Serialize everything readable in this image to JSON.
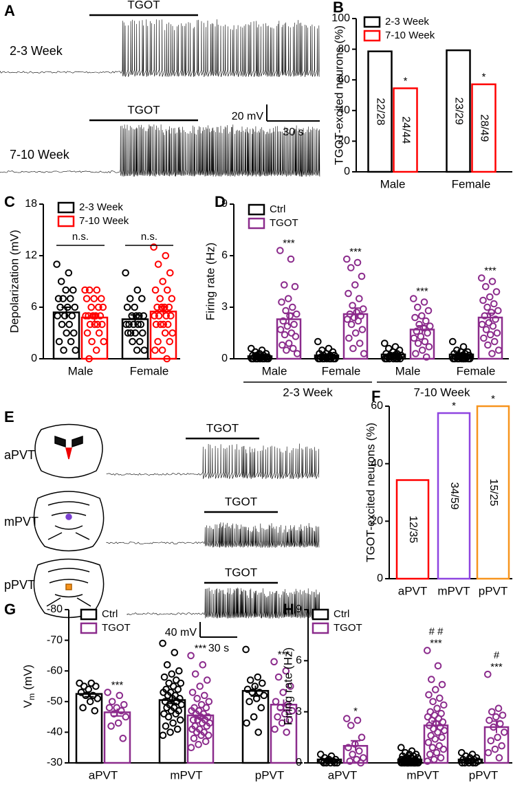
{
  "chart_data": [
    {
      "type": "trace",
      "panel_label": "A",
      "traces": [
        {
          "label": "2-3 Week",
          "stimulus": "TGOT"
        },
        {
          "label": "7-10 Week",
          "stimulus": "TGOT"
        }
      ],
      "scale_bar": {
        "y": "20 mV",
        "x": "30 s"
      }
    },
    {
      "type": "bar",
      "panel_label": "B",
      "ylabel": "TGOT-excited neurons (%)",
      "categories": [
        "Male",
        "Female"
      ],
      "ylim": [
        0,
        100
      ],
      "yticks": [
        0,
        20,
        40,
        60,
        80,
        100
      ],
      "legend": "top-left",
      "series": [
        {
          "name": "2-3 Week",
          "color": "#000000",
          "values": [
            78.6,
            79.3
          ],
          "value_labels": [
            "22/28",
            "23/29"
          ]
        },
        {
          "name": "7-10 Week",
          "color": "#ff0000",
          "values": [
            54.5,
            57.1
          ],
          "value_labels": [
            "24/44",
            "28/49"
          ],
          "annotations": [
            "*",
            "*"
          ]
        }
      ]
    },
    {
      "type": "bar",
      "panel_label": "C",
      "ylabel": "Depolarization (mV)",
      "categories": [
        "Male",
        "Female"
      ],
      "ylim": [
        0,
        18
      ],
      "yticks": [
        0,
        6,
        12,
        18
      ],
      "legend": "top-left",
      "category_annotations": [
        "n.s.",
        "n.s."
      ],
      "series": [
        {
          "name": "2-3 Week",
          "color": "#000000",
          "values": [
            5.4,
            4.6
          ],
          "errors": [
            0.6,
            0.5
          ],
          "points": [
            [
              11,
              10,
              9,
              8,
              8,
              7,
              7,
              7,
              6,
              6,
              6,
              5,
              5,
              5,
              4,
              4,
              3,
              3,
              2,
              2,
              1,
              1
            ],
            [
              10,
              8,
              7,
              7,
              6,
              6,
              5,
              5,
              5,
              5,
              4,
              4,
              4,
              4,
              4,
              3,
              3,
              3,
              3,
              2,
              2,
              1,
              1
            ]
          ]
        },
        {
          "name": "7-10 Week",
          "color": "#ff0000",
          "values": [
            4.8,
            5.5
          ],
          "errors": [
            0.4,
            0.6
          ],
          "points": [
            [
              8,
              8,
              8,
              7,
              7,
              7,
              6,
              6,
              6,
              5,
              5,
              5,
              5,
              5,
              4,
              4,
              4,
              4,
              3,
              3,
              2,
              2,
              1,
              0
            ],
            [
              13,
              12,
              11,
              10,
              9,
              8,
              8,
              7,
              7,
              6,
              6,
              6,
              6,
              5,
              5,
              5,
              5,
              4,
              4,
              4,
              4,
              3,
              3,
              2,
              2,
              1,
              1,
              0
            ]
          ]
        }
      ]
    },
    {
      "type": "bar",
      "panel_label": "D",
      "ylabel": "Firing rate (Hz)",
      "categories": [
        "Male",
        "Female",
        "Male",
        "Female"
      ],
      "group_labels": [
        "2-3 Week",
        "7-10 Week"
      ],
      "ylim": [
        0,
        9
      ],
      "yticks": [
        0,
        3,
        6,
        9
      ],
      "legend": "top-left",
      "series": [
        {
          "name": "Ctrl",
          "color": "#000000",
          "values": [
            0.15,
            0.2,
            0.25,
            0.25
          ],
          "errors": [
            0.05,
            0.06,
            0.06,
            0.06
          ],
          "points": [
            [
              0.6,
              0.5,
              0.4,
              0.3,
              0.3,
              0.2,
              0.2,
              0.2,
              0.1,
              0.1,
              0.1,
              0.1,
              0.1,
              0,
              0,
              0,
              0,
              0,
              0,
              0,
              0,
              0
            ],
            [
              1.0,
              0.6,
              0.5,
              0.4,
              0.3,
              0.3,
              0.2,
              0.2,
              0.2,
              0.1,
              0.1,
              0.1,
              0.1,
              0,
              0,
              0,
              0,
              0,
              0,
              0,
              0,
              0
            ],
            [
              0.9,
              0.7,
              0.6,
              0.5,
              0.4,
              0.3,
              0.3,
              0.2,
              0.2,
              0.2,
              0.1,
              0.1,
              0.1,
              0,
              0,
              0,
              0,
              0,
              0,
              0
            ],
            [
              1.0,
              0.7,
              0.5,
              0.4,
              0.4,
              0.3,
              0.3,
              0.2,
              0.2,
              0.2,
              0.1,
              0.1,
              0.1,
              0,
              0,
              0,
              0,
              0,
              0,
              0,
              0,
              0,
              0
            ]
          ]
        },
        {
          "name": "TGOT",
          "color": "#8b2b8c",
          "values": [
            2.3,
            2.6,
            1.7,
            2.4
          ],
          "errors": [
            0.35,
            0.35,
            0.22,
            0.25
          ],
          "annotations": [
            "***",
            "***",
            "***",
            "***"
          ],
          "points": [
            [
              6.3,
              5.8,
              4.3,
              4.2,
              3.5,
              3.3,
              3.0,
              2.8,
              2.6,
              2.5,
              2.2,
              2.0,
              1.9,
              1.7,
              1.5,
              1.4,
              1.3,
              0.9,
              0.8,
              0.6,
              0.5,
              0.3
            ],
            [
              5.8,
              5.6,
              5.3,
              4.8,
              4.3,
              3.8,
              3.5,
              3.1,
              2.9,
              2.7,
              2.6,
              2.5,
              2.4,
              2.3,
              2.2,
              2.0,
              1.7,
              1.5,
              1.2,
              0.9,
              0.6,
              0.3
            ],
            [
              3.5,
              3.3,
              3.0,
              2.8,
              2.5,
              2.4,
              2.2,
              2.0,
              1.9,
              1.8,
              1.6,
              1.5,
              1.3,
              1.2,
              1.0,
              0.9,
              0.7,
              0.5,
              0.3,
              0.1
            ],
            [
              4.7,
              4.5,
              4.2,
              3.9,
              3.6,
              3.4,
              3.2,
              3.0,
              2.8,
              2.7,
              2.5,
              2.3,
              2.1,
              2.0,
              1.9,
              1.7,
              1.5,
              1.4,
              1.2,
              1.0,
              0.8,
              0.5,
              0.3
            ]
          ]
        }
      ]
    },
    {
      "type": "trace",
      "panel_label": "E",
      "traces": [
        {
          "label": "aPVT",
          "stimulus": "TGOT"
        },
        {
          "label": "mPVT",
          "stimulus": "TGOT"
        },
        {
          "label": "pPVT",
          "stimulus": "TGOT"
        }
      ],
      "scale_bar": {
        "y": "40 mV",
        "x": "30 s"
      }
    },
    {
      "type": "bar",
      "panel_label": "F",
      "ylabel": "TGOT-excited neurons (%)",
      "categories": [
        "aPVT",
        "mPVT",
        "pPVT"
      ],
      "ylim": [
        0,
        60
      ],
      "yticks": [
        0,
        20,
        40,
        60
      ],
      "values": [
        34.3,
        57.6,
        60
      ],
      "value_labels": [
        "12/35",
        "34/59",
        "15/25"
      ],
      "colors": [
        "#ff0000",
        "#8e44e0",
        "#f7941d"
      ],
      "annotations": [
        null,
        "*",
        "*"
      ]
    },
    {
      "type": "bar",
      "panel_label": "G",
      "ylabel": {
        "main": "V",
        "sub": "m",
        "unit": "(mV)"
      },
      "categories": [
        "aPVT",
        "mPVT",
        "pPVT"
      ],
      "ylim": [
        -30,
        -80
      ],
      "yticks": [
        -80,
        -70,
        -60,
        -50,
        -40,
        -30
      ],
      "legend": "top-left",
      "series": [
        {
          "name": "Ctrl",
          "color": "#000000",
          "values": [
            -52.5,
            -50.5,
            -53.5
          ],
          "errors": [
            0.9,
            1.1,
            1.7
          ],
          "points": [
            [
              -56,
              -56,
              -55,
              -55,
              -54,
              -53,
              -52,
              -52,
              -51,
              -50,
              -48,
              -47
            ],
            [
              -69,
              -66,
              -62,
              -60,
              -59,
              -58,
              -57,
              -56,
              -56,
              -55,
              -54,
              -54,
              -53,
              -53,
              -52,
              -52,
              -51,
              -51,
              -50,
              -50,
              -49,
              -49,
              -48,
              -48,
              -47,
              -47,
              -46,
              -46,
              -45,
              -44,
              -43,
              -42,
              -41,
              -40,
              -39
            ],
            [
              -67,
              -58,
              -57,
              -56,
              -55,
              -54,
              -53,
              -53,
              -52,
              -51,
              -50,
              -48,
              -45,
              -43,
              -40
            ]
          ]
        },
        {
          "name": "TGOT",
          "color": "#8b2b8c",
          "values": [
            -46.5,
            -45.5,
            -49
          ],
          "errors": [
            1.2,
            1.0,
            1.7
          ],
          "annotations": [
            "***",
            "***",
            "***"
          ],
          "points": [
            [
              -53,
              -52,
              -50,
              -49,
              -48,
              -48,
              -47,
              -46,
              -45,
              -43,
              -42,
              -38
            ],
            [
              -65,
              -62,
              -59,
              -57,
              -55,
              -53,
              -52,
              -51,
              -50,
              -49,
              -48,
              -48,
              -47,
              -47,
              -46,
              -46,
              -45,
              -45,
              -44,
              -44,
              -44,
              -43,
              -43,
              -42,
              -42,
              -41,
              -41,
              -40,
              -40,
              -39,
              -39,
              -38,
              -37,
              -36,
              -35
            ],
            [
              -63,
              -60,
              -58,
              -55,
              -53,
              -50,
              -49,
              -48,
              -47,
              -46,
              -45,
              -44,
              -43,
              -41,
              -40
            ]
          ]
        }
      ]
    },
    {
      "type": "bar",
      "panel_label": "H",
      "ylabel": "Firing rate (Hz)",
      "categories": [
        "aPVT",
        "mPVT",
        "pPVT"
      ],
      "ylim": [
        0,
        9
      ],
      "yticks": [
        0,
        3,
        6,
        9
      ],
      "legend": "top-left",
      "series": [
        {
          "name": "Ctrl",
          "color": "#000000",
          "values": [
            0.2,
            0.2,
            0.2
          ],
          "errors": [
            0.05,
            0.04,
            0.05
          ],
          "points": [
            [
              0.5,
              0.4,
              0.3,
              0.2,
              0.2,
              0.1,
              0.1,
              0,
              0,
              0,
              0,
              0
            ],
            [
              0.9,
              0.7,
              0.6,
              0.5,
              0.5,
              0.4,
              0.4,
              0.3,
              0.3,
              0.3,
              0.2,
              0.2,
              0.2,
              0.2,
              0.1,
              0.1,
              0.1,
              0.1,
              0.1,
              0,
              0,
              0,
              0,
              0,
              0,
              0,
              0,
              0,
              0,
              0,
              0,
              0,
              0,
              0,
              0
            ],
            [
              0.6,
              0.5,
              0.4,
              0.3,
              0.3,
              0.2,
              0.2,
              0.1,
              0.1,
              0.1,
              0,
              0,
              0,
              0,
              0
            ]
          ]
        },
        {
          "name": "TGOT",
          "color": "#8b2b8c",
          "values": [
            1.0,
            2.2,
            2.1
          ],
          "errors": [
            0.3,
            0.25,
            0.35
          ],
          "annotations": [
            "*",
            "***",
            "***"
          ],
          "annotations2": [
            null,
            "# #",
            "#"
          ],
          "points": [
            [
              2.6,
              2.5,
              2.2,
              1.5,
              1.1,
              0.9,
              0.7,
              0.5,
              0.3,
              0.2,
              0.1,
              0
            ],
            [
              6.6,
              5.7,
              4.9,
              4.6,
              4.3,
              4.0,
              3.8,
              3.6,
              3.4,
              3.2,
              3.0,
              2.9,
              2.8,
              2.7,
              2.6,
              2.5,
              2.4,
              2.3,
              2.2,
              2.1,
              2.0,
              1.9,
              1.8,
              1.6,
              1.5,
              1.4,
              1.2,
              1.0,
              0.9,
              0.8,
              0.6,
              0.5,
              0.3,
              0.2,
              0.1
            ],
            [
              5.2,
              3.2,
              3.0,
              2.8,
              2.7,
              2.5,
              2.3,
              2.1,
              1.8,
              1.5,
              1.3,
              1.0,
              0.8,
              0.6,
              0.3
            ]
          ]
        }
      ]
    }
  ]
}
